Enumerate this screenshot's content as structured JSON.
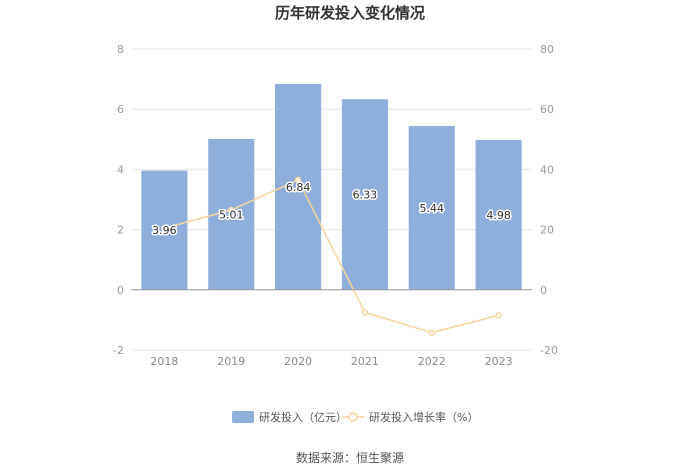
{
  "chart_data": {
    "type": "bar",
    "title": "历年研发投入变化情况",
    "categories": [
      "2018",
      "2019",
      "2020",
      "2021",
      "2022",
      "2023"
    ],
    "series": [
      {
        "name": "研发投入（亿元）",
        "type": "bar",
        "axis": "left",
        "values": [
          3.96,
          5.01,
          6.84,
          6.33,
          5.44,
          4.98
        ],
        "value_labels": [
          "3.96",
          "5.01",
          "6.84",
          "6.33",
          "5.44",
          "4.98"
        ],
        "color": "#8eaedb"
      },
      {
        "name": "研发投入增长率（%）",
        "type": "line",
        "axis": "right",
        "values": [
          20.5,
          26.5,
          36.5,
          -7.5,
          -14.2,
          -8.5
        ],
        "color": "#f7d49a"
      }
    ],
    "y_left": {
      "range": [
        -2,
        8
      ],
      "ticks": [
        "-2",
        "0",
        "2",
        "4",
        "6",
        "8"
      ]
    },
    "y_right": {
      "range": [
        -20,
        80
      ],
      "ticks": [
        "-20",
        "0",
        "20",
        "40",
        "60",
        "80"
      ]
    },
    "grid": true,
    "legend_position": "bottom-center"
  },
  "source_text": "数据来源：恒生聚源"
}
